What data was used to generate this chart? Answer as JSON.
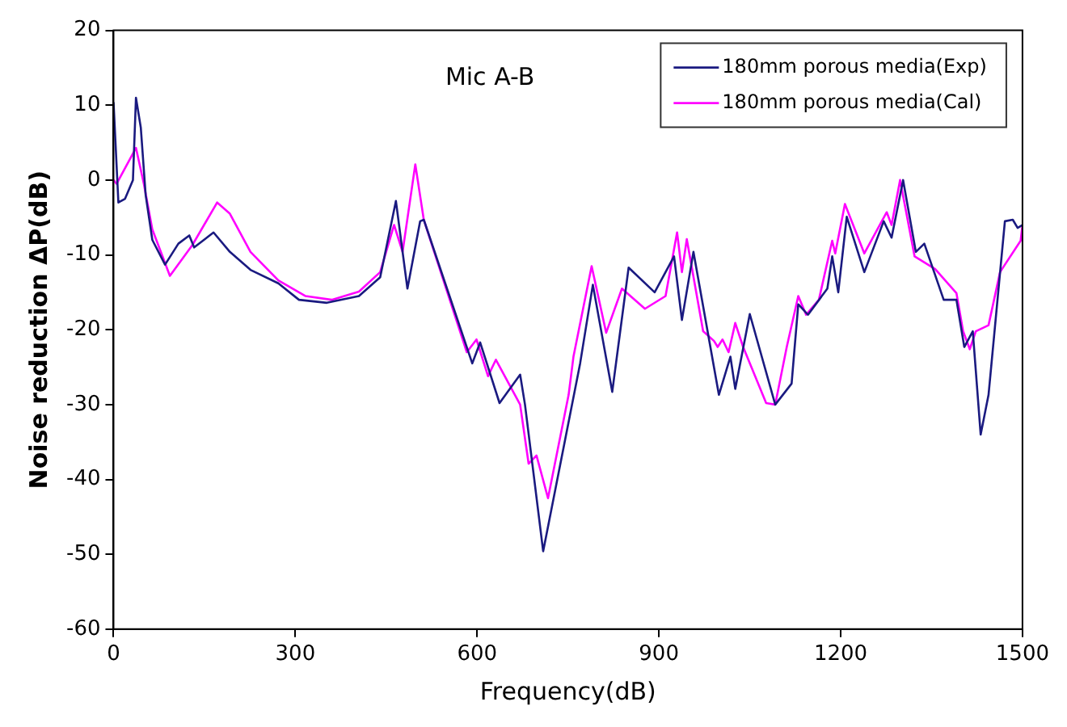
{
  "chart_data": {
    "type": "line",
    "xlabel": "Frequency(dB)",
    "ylabel": "Noise reduction ΔP(dB)",
    "annotations": [
      "Mic A-B"
    ],
    "xlim": [
      0,
      1500
    ],
    "xticks": [
      0,
      300,
      600,
      900,
      1200,
      1500
    ],
    "ylim": [
      -60,
      20
    ],
    "yticks": [
      -60,
      -50,
      -40,
      -30,
      -20,
      -10,
      0,
      10,
      20
    ],
    "grid": false,
    "legend": "top right",
    "marker": "none",
    "line_style": "solid",
    "series": [
      {
        "name": "180mm porous media(Exp)",
        "color": "#1a1a80",
        "x": [
          0,
          8,
          19,
          32,
          37,
          45,
          53,
          64,
          85,
          107,
          125,
          133,
          165,
          192,
          226,
          272,
          306,
          352,
          405,
          440,
          466,
          477,
          485,
          506,
          512,
          592,
          605,
          637,
          671,
          679,
          709,
          770,
          791,
          823,
          850,
          893,
          925,
          938,
          957,
          999,
          1018,
          1026,
          1050,
          1092,
          1119,
          1130,
          1146,
          1178,
          1186,
          1196,
          1210,
          1239,
          1271,
          1284,
          1303,
          1324,
          1338,
          1370,
          1391,
          1404,
          1418,
          1431,
          1444,
          1471,
          1484,
          1492,
          1500
        ],
        "values": [
          10.4,
          -3,
          -2.5,
          0,
          11,
          7,
          -2,
          -8,
          -11.3,
          -8.5,
          -7.4,
          -9,
          -7,
          -9.6,
          -12,
          -13.8,
          -16,
          -16.4,
          -15.5,
          -13,
          -2.8,
          -9.6,
          -14.5,
          -5.5,
          -5.3,
          -24.5,
          -21.7,
          -29.8,
          -26,
          -30,
          -49.6,
          -24.5,
          -14,
          -28.3,
          -11.7,
          -15,
          -10.2,
          -18.7,
          -9.6,
          -28.7,
          -23.6,
          -27.9,
          -17.9,
          -30,
          -27.2,
          -16.6,
          -18,
          -14.5,
          -10.2,
          -15,
          -4.9,
          -12.3,
          -5.5,
          -7.7,
          0,
          -9.6,
          -8.5,
          -16,
          -16,
          -22.3,
          -20.2,
          -34,
          -28.7,
          -5.5,
          -5.3,
          -6.4,
          -6
        ]
      },
      {
        "name": "180mm porous media(Cal)",
        "color": "#ff00ff",
        "x": [
          0,
          5,
          37,
          50,
          64,
          93,
          130,
          171,
          192,
          226,
          272,
          317,
          360,
          405,
          440,
          463,
          477,
          498,
          512,
          583,
          599,
          618,
          631,
          671,
          685,
          698,
          717,
          751,
          759,
          789,
          813,
          839,
          877,
          911,
          930,
          938,
          946,
          973,
          991,
          997,
          1005,
          1015,
          1026,
          1039,
          1077,
          1092,
          1111,
          1130,
          1143,
          1164,
          1186,
          1191,
          1207,
          1239,
          1276,
          1284,
          1298,
          1322,
          1356,
          1391,
          1402,
          1413,
          1423,
          1444,
          1463,
          1471,
          1497,
          1500
        ],
        "values": [
          0,
          -0.5,
          4.3,
          -0.5,
          -6.6,
          -12.8,
          -8.7,
          -3,
          -4.5,
          -9.6,
          -13.4,
          -15.5,
          -16,
          -14.9,
          -12.3,
          -6,
          -9.6,
          2.1,
          -5.3,
          -23,
          -21.3,
          -26.2,
          -24,
          -30,
          -37.9,
          -36.8,
          -42.5,
          -28.7,
          -23.6,
          -11.5,
          -20.4,
          -14.5,
          -17.2,
          -15.5,
          -7,
          -12.3,
          -7.9,
          -20.2,
          -21.5,
          -22.3,
          -21.3,
          -23,
          -19.1,
          -22.3,
          -29.8,
          -30,
          -22.3,
          -15.5,
          -18,
          -16,
          -8.1,
          -9.8,
          -3.2,
          -9.8,
          -4.3,
          -6,
          0,
          -10.2,
          -11.9,
          -15.1,
          -20.2,
          -22.6,
          -20.2,
          -19.4,
          -12.3,
          -11.3,
          -8.1,
          -6
        ]
      }
    ]
  }
}
